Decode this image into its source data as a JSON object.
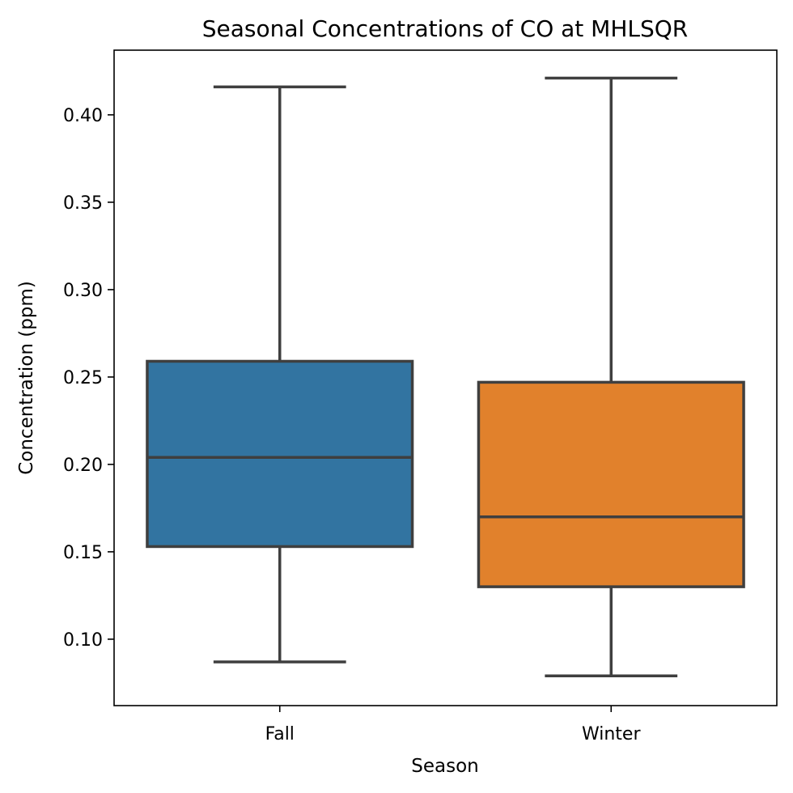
{
  "chart_data": {
    "type": "box",
    "title": "Seasonal Concentrations of CO at MHLSQR",
    "xlabel": "Season",
    "ylabel": "Concentration (ppm)",
    "categories": [
      "Fall",
      "Winter"
    ],
    "ylim": [
      0.062,
      0.437
    ],
    "yticks": [
      0.1,
      0.15,
      0.2,
      0.25,
      0.3,
      0.35,
      0.4
    ],
    "ytick_labels": [
      "0.10",
      "0.15",
      "0.20",
      "0.25",
      "0.30",
      "0.35",
      "0.40"
    ],
    "grid": false,
    "boxes": [
      {
        "category": "Fall",
        "whisker_low": 0.087,
        "q1": 0.153,
        "median": 0.204,
        "q3": 0.259,
        "whisker_high": 0.416,
        "color": "#3274a1"
      },
      {
        "category": "Winter",
        "whisker_low": 0.079,
        "q1": 0.13,
        "median": 0.17,
        "q3": 0.247,
        "whisker_high": 0.421,
        "color": "#e1812c"
      }
    ],
    "line_color": "#3f3f3f"
  }
}
